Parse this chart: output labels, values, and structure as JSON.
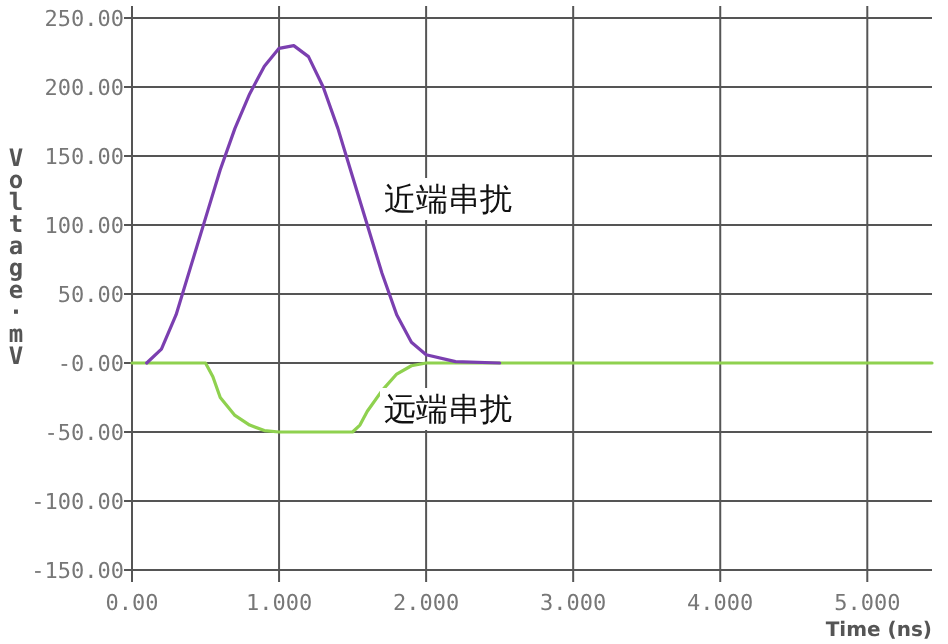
{
  "chart_data": {
    "type": "line",
    "xlabel": "Time (ns)",
    "ylabel": "Voltage·mV",
    "xlim": [
      0,
      5.44
    ],
    "ylim": [
      -150,
      250
    ],
    "xticks": [
      {
        "value": 0,
        "label": "0.00"
      },
      {
        "value": 1,
        "label": "1.000"
      },
      {
        "value": 2,
        "label": "2.000"
      },
      {
        "value": 3,
        "label": "3.000"
      },
      {
        "value": 4,
        "label": "4.000"
      },
      {
        "value": 5,
        "label": "5.000"
      }
    ],
    "yticks": [
      {
        "value": -150,
        "label": "-150.00"
      },
      {
        "value": -100,
        "label": "-100.00"
      },
      {
        "value": -50,
        "label": "-50.00"
      },
      {
        "value": 0,
        "label": "-0.00"
      },
      {
        "value": 50,
        "label": "50.00"
      },
      {
        "value": 100,
        "label": "100.00"
      },
      {
        "value": 150,
        "label": "150.00"
      },
      {
        "value": 200,
        "label": "200.00"
      },
      {
        "value": 250,
        "label": "250.00"
      }
    ],
    "grid": true,
    "series": [
      {
        "color": "#8fd14f",
        "x": [
          0,
          0.5,
          0.55,
          0.6,
          0.7,
          0.8,
          0.9,
          1.0,
          1.5,
          1.55,
          1.6,
          1.7,
          1.8,
          1.9,
          2.0,
          5.44
        ],
        "values": [
          0,
          0,
          -10,
          -25,
          -38,
          -45,
          -49,
          -50,
          -50,
          -45,
          -35,
          -20,
          -8,
          -2,
          0,
          0
        ]
      },
      {
        "color": "#7b3fb0",
        "x": [
          0.1,
          0.2,
          0.3,
          0.4,
          0.5,
          0.6,
          0.7,
          0.8,
          0.9,
          1.0,
          1.1,
          1.2,
          1.3,
          1.4,
          1.5,
          1.6,
          1.7,
          1.8,
          1.9,
          2.0,
          2.2,
          2.5
        ],
        "values": [
          0,
          10,
          35,
          70,
          105,
          140,
          170,
          195,
          215,
          228,
          230,
          222,
          200,
          170,
          135,
          100,
          65,
          35,
          15,
          6,
          1,
          0
        ]
      }
    ],
    "annotations": [
      "近端串扰",
      "远端串扰"
    ]
  }
}
